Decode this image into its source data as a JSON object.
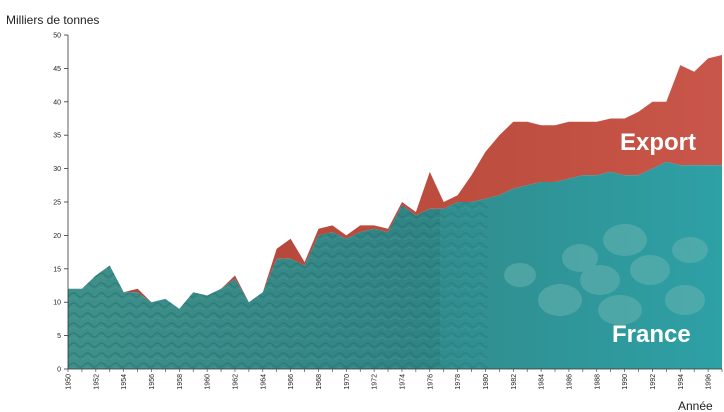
{
  "chart_data": {
    "type": "area",
    "stacked": true,
    "ylabel": "Milliers de tonnes",
    "xlabel": "Année",
    "ylim": [
      0,
      50
    ],
    "yticks": [
      0,
      5,
      10,
      15,
      20,
      25,
      30,
      35,
      40,
      45,
      50
    ],
    "xlim": [
      1950,
      1997
    ],
    "xticks": [
      1950,
      1952,
      1954,
      1956,
      1958,
      1960,
      1962,
      1964,
      1966,
      1968,
      1970,
      1972,
      1974,
      1976,
      1978,
      1980,
      1982,
      1984,
      1986,
      1988,
      1990,
      1992,
      1994,
      1996
    ],
    "x": [
      1950,
      1951,
      1952,
      1953,
      1954,
      1955,
      1956,
      1957,
      1958,
      1959,
      1960,
      1961,
      1962,
      1963,
      1964,
      1965,
      1966,
      1967,
      1968,
      1969,
      1970,
      1971,
      1972,
      1973,
      1974,
      1975,
      1976,
      1977,
      1978,
      1979,
      1980,
      1981,
      1982,
      1983,
      1984,
      1985,
      1986,
      1987,
      1988,
      1989,
      1990,
      1991,
      1992,
      1993,
      1994,
      1995,
      1996,
      1997
    ],
    "series": [
      {
        "name": "France",
        "color": "#2e8a8a",
        "values": [
          12,
          12,
          14,
          15.5,
          11.5,
          11.5,
          10,
          10.5,
          9,
          11.5,
          11,
          12,
          13.5,
          10,
          11.5,
          16.5,
          16.5,
          15.5,
          20,
          20.5,
          19.5,
          20.5,
          21,
          20.5,
          24.5,
          23,
          24,
          24,
          25,
          25,
          25.5,
          26,
          27,
          27.5,
          28,
          28,
          28.5,
          29,
          29,
          29.5,
          29,
          29,
          30,
          31,
          30.5,
          30.5,
          30.5,
          30.5
        ]
      },
      {
        "name": "Export",
        "color": "#b5473a",
        "values": [
          0,
          0,
          0,
          0,
          0,
          0.5,
          0,
          0,
          0,
          0,
          0,
          0,
          0.5,
          0,
          0,
          1.5,
          3,
          0.5,
          1,
          1,
          0.5,
          1,
          0.5,
          0.5,
          0.5,
          0.5,
          5.5,
          1,
          1,
          4,
          7,
          9,
          10,
          9.5,
          8.5,
          8.5,
          8.5,
          8,
          8,
          8,
          8.5,
          9.5,
          10,
          9,
          15,
          14,
          16,
          16.5
        ]
      }
    ],
    "annotations": [
      "Export",
      "France"
    ]
  }
}
